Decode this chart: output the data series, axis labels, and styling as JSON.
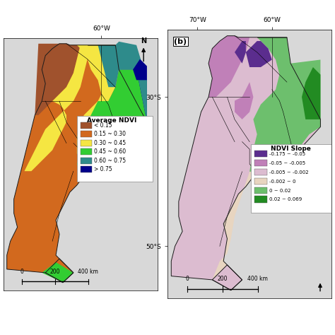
{
  "panel_a": {
    "legend_title": "Average NDVI",
    "legend_items": [
      {
        "label": "< 0.15",
        "color": "#A0522D"
      },
      {
        "label": "0.15 ~ 0.30",
        "color": "#D2691E"
      },
      {
        "label": "0.30 ~ 0.45",
        "color": "#F5E642"
      },
      {
        "label": "0.45 ~ 0.60",
        "color": "#32CD32"
      },
      {
        "label": "0.60 ~ 0.75",
        "color": "#2E8B8B"
      },
      {
        "label": "> 0.75",
        "color": "#00008B"
      }
    ]
  },
  "panel_b": {
    "legend_title": "NDVI Slope",
    "legend_items": [
      {
        "label": "-0.175 ~ -0.05",
        "color": "#5B2D8E"
      },
      {
        "label": "-0.05 ~ -0.005",
        "color": "#C080B8"
      },
      {
        "label": "-0.005 ~ -0.002",
        "color": "#DCBCD0"
      },
      {
        "label": "-0.002 ~ 0",
        "color": "#E8D5C0"
      },
      {
        "label": "0 ~ 0.02",
        "color": "#6DBF6D"
      },
      {
        "label": "0.02 ~ 0.069",
        "color": "#228B22"
      }
    ]
  },
  "lon_60W": "60°W",
  "lon_70W": "70°W",
  "lat_30S": "30°S",
  "lat_50S": "50°S",
  "scalebar_text": "0   200   400 km",
  "compass_N": "N",
  "panel_b_label": "(b)"
}
